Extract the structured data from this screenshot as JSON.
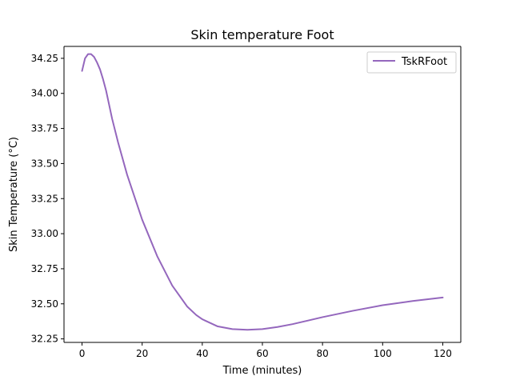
{
  "chart_data": {
    "type": "line",
    "title": "Skin temperature Foot",
    "xlabel": "Time (minutes)",
    "ylabel": "Skin Temperature (°C)",
    "xlim": [
      -6,
      126
    ],
    "ylim": [
      32.225,
      34.335
    ],
    "xticks": [
      0,
      20,
      40,
      60,
      80,
      100,
      120
    ],
    "xtick_labels": [
      "0",
      "20",
      "40",
      "60",
      "80",
      "100",
      "120"
    ],
    "yticks": [
      32.25,
      32.5,
      32.75,
      33.0,
      33.25,
      33.5,
      33.75,
      34.0,
      34.25
    ],
    "ytick_labels": [
      "32.25",
      "32.50",
      "32.75",
      "33.00",
      "33.25",
      "33.50",
      "33.75",
      "34.00",
      "34.25"
    ],
    "grid": false,
    "legend_position": "top-right",
    "series": [
      {
        "name": "TskRFoot",
        "color": "#9467bd",
        "x": [
          0,
          1,
          2,
          3,
          4,
          5,
          6,
          7,
          8,
          10,
          12,
          15,
          20,
          25,
          30,
          35,
          38,
          40,
          45,
          50,
          55,
          60,
          65,
          70,
          80,
          90,
          100,
          110,
          120
        ],
        "y": [
          34.16,
          34.25,
          34.28,
          34.28,
          34.26,
          34.22,
          34.17,
          34.1,
          34.02,
          33.82,
          33.65,
          33.42,
          33.1,
          32.84,
          32.63,
          32.48,
          32.42,
          32.39,
          32.34,
          32.32,
          32.315,
          32.32,
          32.335,
          32.355,
          32.405,
          32.45,
          32.49,
          32.52,
          32.545
        ]
      }
    ]
  }
}
